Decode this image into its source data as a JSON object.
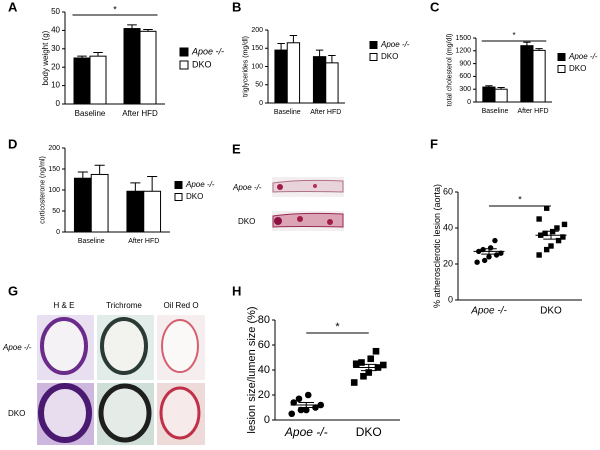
{
  "chart_data": [
    {
      "panel": "A",
      "type": "bar",
      "ylabel": "body weight (g)",
      "categories": [
        "Baseline",
        "After HFD"
      ],
      "series": [
        {
          "name": "Apoe -/-",
          "color": "#000000",
          "values": [
            25,
            41
          ],
          "errors": [
            1,
            2
          ]
        },
        {
          "name": "DKO",
          "color": "#ffffff",
          "values": [
            26,
            39.5
          ],
          "errors": [
            2,
            1
          ]
        }
      ],
      "ylim": [
        0,
        50
      ],
      "yticks": [
        0,
        10,
        20,
        30,
        40,
        50
      ],
      "annotation": "*"
    },
    {
      "panel": "B",
      "type": "bar",
      "ylabel": "triglycerides (mg/dl)",
      "categories": [
        "Baseline",
        "After HFD"
      ],
      "series": [
        {
          "name": "Apoe -/-",
          "color": "#000000",
          "values": [
            145,
            127
          ],
          "errors": [
            18,
            18
          ]
        },
        {
          "name": "DKO",
          "color": "#ffffff",
          "values": [
            165,
            110
          ],
          "errors": [
            20,
            20
          ]
        }
      ],
      "ylim": [
        0,
        200
      ],
      "yticks": [
        0,
        50,
        100,
        150,
        200
      ]
    },
    {
      "panel": "C",
      "type": "bar",
      "ylabel": "total cholesterol (mg/dl)",
      "categories": [
        "Baseline",
        "After HFD"
      ],
      "series": [
        {
          "name": "Apoe -/-",
          "color": "#000000",
          "values": [
            350,
            1320
          ],
          "errors": [
            30,
            80
          ]
        },
        {
          "name": "DKO",
          "color": "#ffffff",
          "values": [
            300,
            1210
          ],
          "errors": [
            40,
            40
          ]
        }
      ],
      "ylim": [
        0,
        1500
      ],
      "yticks": [
        0,
        300,
        600,
        900,
        1200,
        1500
      ],
      "annotation": "*"
    },
    {
      "panel": "D",
      "type": "bar",
      "ylabel": "corticosterone (ng/ml)",
      "categories": [
        "Baseline",
        "After HFD"
      ],
      "series": [
        {
          "name": "Apoe -/-",
          "color": "#000000",
          "values": [
            128,
            97
          ],
          "errors": [
            15,
            20
          ]
        },
        {
          "name": "DKO",
          "color": "#ffffff",
          "values": [
            137,
            97
          ],
          "errors": [
            22,
            35
          ]
        }
      ],
      "ylim": [
        0,
        200
      ],
      "yticks": [
        0,
        50,
        100,
        150,
        200
      ]
    },
    {
      "panel": "F",
      "type": "strip",
      "ylabel": "% atherosclerotic lesion (aorta)",
      "categories": [
        "Apoe -/-",
        "DKO"
      ],
      "groups": [
        {
          "values": [
            21,
            22,
            24,
            25,
            26,
            27,
            28,
            29,
            33
          ],
          "mean": 27,
          "sem": 1.5,
          "marker": "circle"
        },
        {
          "values": [
            25,
            28,
            30,
            33,
            35,
            36,
            37,
            38,
            40,
            42,
            45,
            51
          ],
          "mean": 36,
          "sem": 2.2,
          "marker": "square"
        }
      ],
      "color": "#000000",
      "ylim": [
        0,
        60
      ],
      "yticks": [
        0,
        20,
        40,
        60
      ],
      "annotation": "*"
    },
    {
      "panel": "H",
      "type": "strip",
      "ylabel": "lesion size/lumen size (%)",
      "categories": [
        "Apoe -/-",
        "DKO"
      ],
      "groups": [
        {
          "values": [
            5,
            8,
            8,
            10,
            12,
            14,
            17,
            20
          ],
          "mean": 12,
          "sem": 2,
          "marker": "circle"
        },
        {
          "values": [
            30,
            35,
            38,
            42,
            44,
            45,
            46,
            49,
            55
          ],
          "mean": 42,
          "sem": 2.5,
          "marker": "square"
        }
      ],
      "color": "#000000",
      "ylim": [
        0,
        80
      ],
      "yticks": [
        0,
        20,
        40,
        60,
        80
      ],
      "annotation": "*"
    }
  ],
  "images": [
    {
      "panel": "E",
      "row_labels": [
        "Apoe -/-",
        "DKO"
      ]
    },
    {
      "panel": "G",
      "column_labels": [
        "H & E",
        "Trichrome",
        "Oil Red O"
      ],
      "row_labels": [
        "Apoe -/-",
        "DKO"
      ]
    }
  ]
}
